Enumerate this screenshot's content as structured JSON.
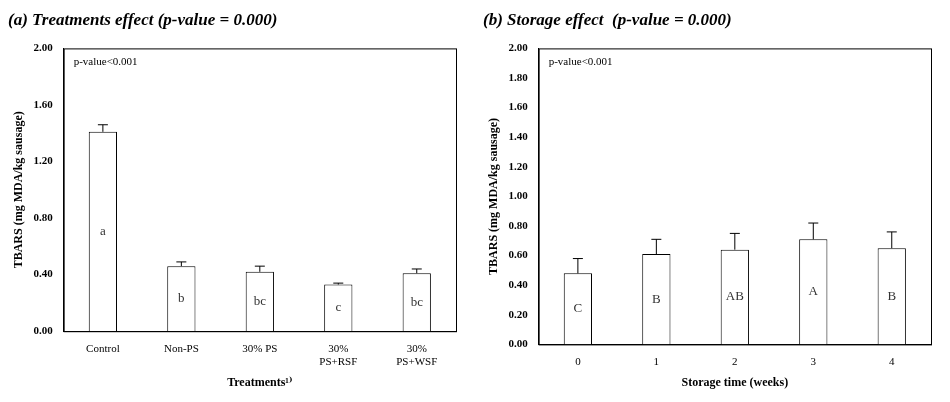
{
  "chart_data": [
    {
      "type": "bar",
      "title": "(a) Treatments effect (p-value = 0.000)",
      "annotations": [
        "p-value<0.001"
      ],
      "x_label": "Treatments¹⁾",
      "y_label": "TBARS (mg MDA/kg sausage)",
      "categories": [
        "Control",
        "Non-PS",
        "30% PS",
        "30% PS+RSF",
        "30% PS+WSF"
      ],
      "values": [
        1.41,
        0.46,
        0.42,
        0.33,
        0.41
      ],
      "errors": [
        0.05,
        0.03,
        0.04,
        0.01,
        0.03
      ],
      "letters": [
        "a",
        "b",
        "bc",
        "c",
        "bc"
      ],
      "color": "#ffffff",
      "ylim": [
        0,
        2
      ],
      "yticks": [
        {
          "value": 0,
          "label": "0.00"
        },
        {
          "value": 0.4,
          "label": "0.40"
        },
        {
          "value": 0.8,
          "label": "0.80"
        },
        {
          "value": 1.2,
          "label": "1.20"
        },
        {
          "value": 1.6,
          "label": "1.60"
        },
        {
          "value": 2,
          "label": "2.00"
        }
      ],
      "grid": false
    },
    {
      "type": "bar",
      "title": "(b) Storage effect  (p-value = 0.000)",
      "annotations": [
        "p-value<0.001"
      ],
      "x_label": "Storage time (weeks)",
      "y_label": "TBARS (mg MDA/kg sausage)",
      "categories": [
        "0",
        "1",
        "2",
        "3",
        "4"
      ],
      "values": [
        0.48,
        0.61,
        0.64,
        0.71,
        0.65
      ],
      "errors": [
        0.1,
        0.1,
        0.11,
        0.11,
        0.11
      ],
      "letters": [
        "C",
        "B",
        "AB",
        "A",
        "B"
      ],
      "color": "#ffffff",
      "ylim": [
        0,
        2
      ],
      "yticks": [
        {
          "value": 0,
          "label": "0.00"
        },
        {
          "value": 0.2,
          "label": "0.20"
        },
        {
          "value": 0.4,
          "label": "0.40"
        },
        {
          "value": 0.6,
          "label": "0.60"
        },
        {
          "value": 0.8,
          "label": "0.80"
        },
        {
          "value": 1,
          "label": "1.00"
        },
        {
          "value": 1.2,
          "label": "1.20"
        },
        {
          "value": 1.4,
          "label": "1.40"
        },
        {
          "value": 1.6,
          "label": "1.60"
        },
        {
          "value": 1.8,
          "label": "1.80"
        },
        {
          "value": 2,
          "label": "2.00"
        }
      ],
      "grid": false
    }
  ]
}
